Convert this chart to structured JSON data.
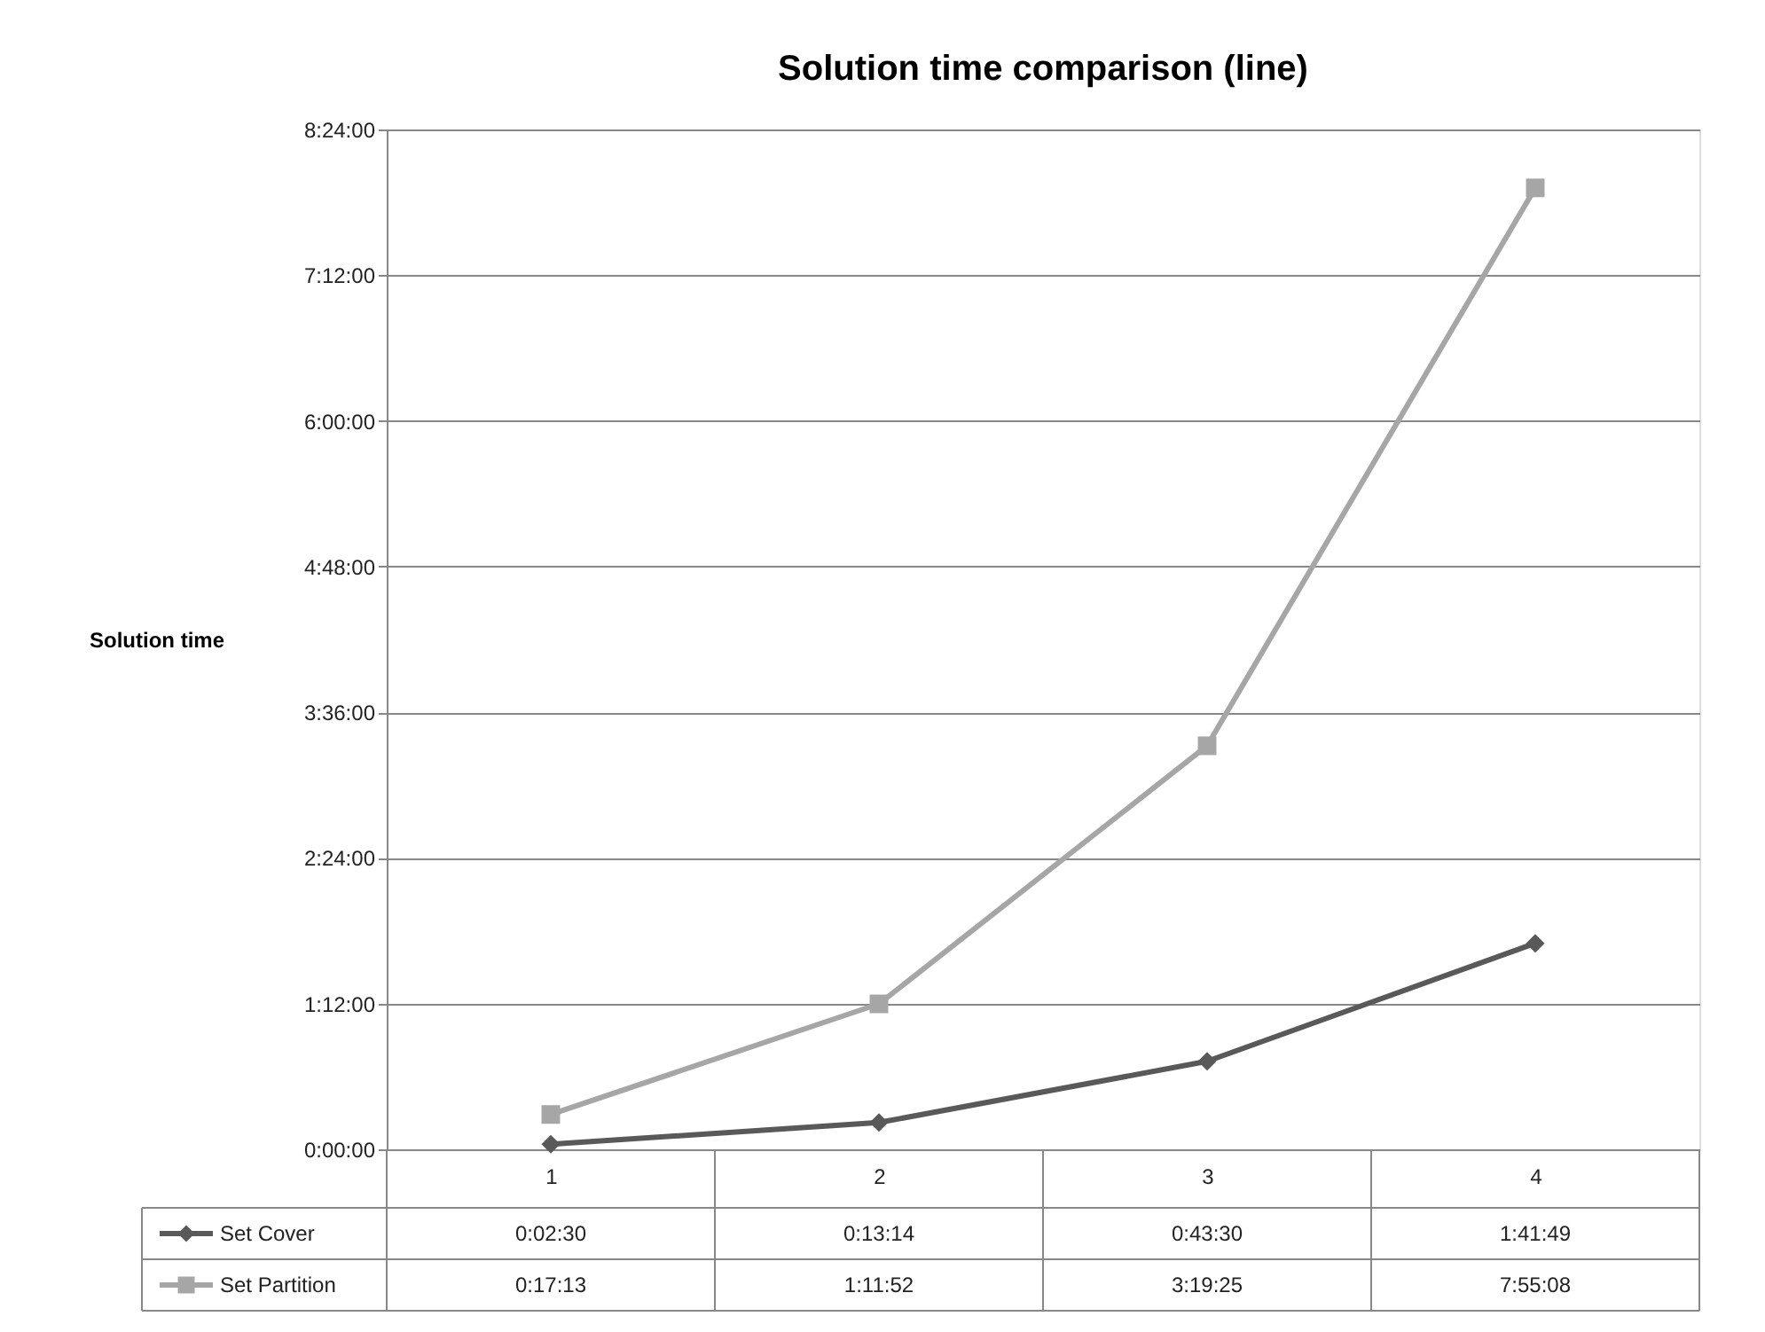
{
  "chart_data": {
    "type": "line",
    "title": "Solution time comparison (line)",
    "ylabel": "Solution time",
    "categories": [
      "1",
      "2",
      "3",
      "4"
    ],
    "ylim": [
      0,
      8.4
    ],
    "yticks": [
      {
        "value": 0,
        "label": "0:00:00"
      },
      {
        "value": 1.2,
        "label": "1:12:00"
      },
      {
        "value": 2.4,
        "label": "2:24:00"
      },
      {
        "value": 3.6,
        "label": "3:36:00"
      },
      {
        "value": 4.8,
        "label": "4:48:00"
      },
      {
        "value": 6.0,
        "label": "6:00:00"
      },
      {
        "value": 7.2,
        "label": "7:12:00"
      },
      {
        "value": 8.4,
        "label": "8:24:00"
      }
    ],
    "grid": "y",
    "legend": "bottom",
    "series": [
      {
        "name": "Set Cover",
        "color": "#595959",
        "marker": "diamond",
        "values": [
          0.041667,
          0.220556,
          0.725,
          1.696944
        ],
        "value_labels": [
          "0:02:30",
          "0:13:14",
          "0:43:30",
          "1:41:49"
        ]
      },
      {
        "name": "Set Partition",
        "color": "#a6a6a6",
        "marker": "square",
        "values": [
          0.286944,
          1.197778,
          3.323611,
          7.918889
        ],
        "value_labels": [
          "0:17:13",
          "1:11:52",
          "3:19:25",
          "7:55:08"
        ]
      }
    ]
  }
}
